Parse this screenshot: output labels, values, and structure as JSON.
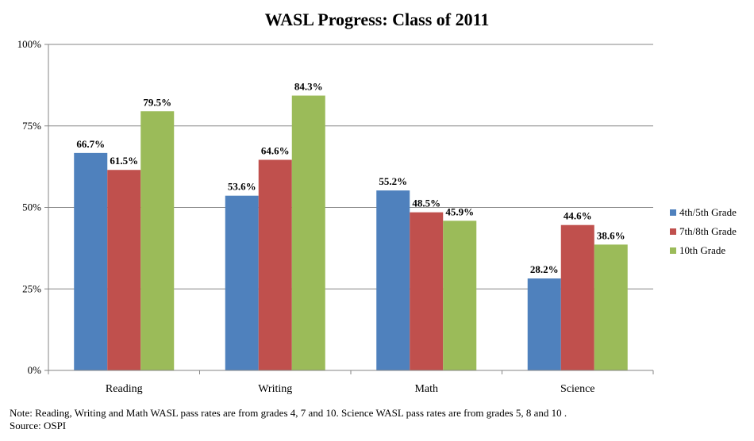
{
  "chart_data": {
    "type": "bar",
    "title": "WASL Progress: Class of 2011",
    "categories": [
      "Reading",
      "Writing",
      "Math",
      "Science"
    ],
    "series": [
      {
        "name": "4th/5th Grade",
        "color": "#4F81BD",
        "values": [
          66.7,
          53.6,
          55.2,
          28.2
        ],
        "labels": [
          "66.7%",
          "53.6%",
          "55.2%",
          "28.2%"
        ]
      },
      {
        "name": "7th/8th Grade",
        "color": "#C0504D",
        "values": [
          61.5,
          64.6,
          48.5,
          44.6
        ],
        "labels": [
          "61.5%",
          "64.6%",
          "48.5%",
          "44.6%"
        ]
      },
      {
        "name": "10th Grade",
        "color": "#9BBB59",
        "values": [
          79.5,
          84.3,
          45.9,
          38.6
        ],
        "labels": [
          "79.5%",
          "84.3%",
          "45.9%",
          "38.6%"
        ]
      }
    ],
    "ylim": [
      0,
      100
    ],
    "yticks": [
      0,
      25,
      50,
      75,
      100
    ],
    "ytick_labels": [
      "0%",
      "25%",
      "50%",
      "75%",
      "100%"
    ],
    "grid": true,
    "legend_position": "right"
  },
  "footnote": {
    "note": "Note: Reading, Writing and Math WASL pass rates are from grades 4, 7 and 10. Science WASL pass rates are from grades 5, 8 and 10 .",
    "source": "Source: OSPI"
  }
}
